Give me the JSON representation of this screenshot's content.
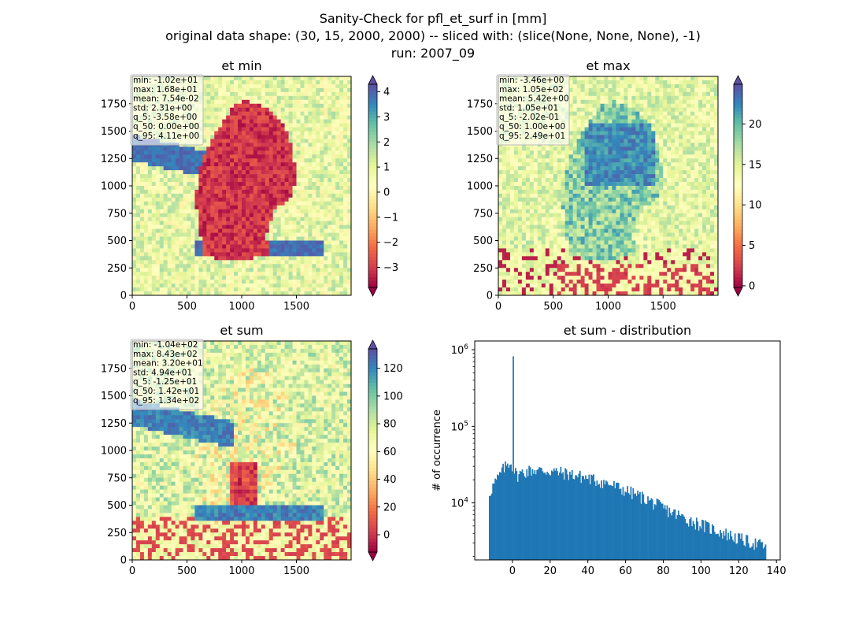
{
  "figure": {
    "title_lines": [
      "Sanity-Check for pfl_et_surf in [mm]",
      "original data shape: (30, 15, 2000, 2000) -- sliced with: (slice(None, None, None), -1)",
      "run: 2007_09"
    ]
  },
  "chart_data": [
    {
      "type": "heatmap",
      "title": "et min",
      "xlim": [
        0,
        2000
      ],
      "ylim": [
        0,
        2000
      ],
      "xticks": [
        0,
        500,
        1000,
        1500
      ],
      "yticks": [
        0,
        250,
        500,
        750,
        1000,
        1250,
        1500,
        1750
      ],
      "colormap": "Spectral",
      "colorbar": {
        "range": [
          -3.8,
          4.3
        ],
        "ticks": [
          -3,
          -2,
          -1,
          0,
          1,
          2,
          3,
          4
        ],
        "extend": "both"
      },
      "stats": [
        "min: -1.02e+01",
        "max: 1.68e+01",
        "mean: 7.54e-02",
        "std: 2.31e+00",
        "q_5: -3.58e+00",
        "q_50: 0.00e+00",
        "q_95: 4.11e+00"
      ]
    },
    {
      "type": "heatmap",
      "title": "et max",
      "xlim": [
        0,
        2000
      ],
      "ylim": [
        0,
        2000
      ],
      "xticks": [
        0,
        500,
        1000,
        1500
      ],
      "yticks": [
        0,
        250,
        500,
        750,
        1000,
        1250,
        1500,
        1750
      ],
      "colormap": "Spectral",
      "colorbar": {
        "range": [
          -0.2,
          24.9
        ],
        "ticks": [
          0,
          5,
          10,
          15,
          20
        ],
        "extend": "both"
      },
      "stats": [
        "min: -3.46e+00",
        "max: 1.05e+02",
        "mean: 5.42e+00",
        "std: 1.05e+01",
        "q_5: -2.02e-01",
        "q_50: 1.00e+00",
        "q_95: 2.49e+01"
      ]
    },
    {
      "type": "heatmap",
      "title": "et sum",
      "xlim": [
        0,
        2000
      ],
      "ylim": [
        0,
        2000
      ],
      "xticks": [
        0,
        500,
        1000,
        1500
      ],
      "yticks": [
        0,
        250,
        500,
        750,
        1000,
        1250,
        1500,
        1750
      ],
      "colormap": "Spectral",
      "colorbar": {
        "range": [
          -12.5,
          134
        ],
        "ticks": [
          0,
          20,
          40,
          60,
          80,
          100,
          120
        ],
        "extend": "both"
      },
      "stats": [
        "min: -1.04e+02",
        "max: 8.43e+02",
        "mean: 3.20e+01",
        "std: 4.94e+01",
        "q_5: -1.25e+01",
        "q_50: 1.42e+01",
        "q_95: 1.34e+02"
      ]
    },
    {
      "type": "bar",
      "title": "et sum - distribution",
      "ylabel": "# of occurrence",
      "xlabel": "",
      "yscale": "log",
      "xlim": [
        -20,
        142
      ],
      "ylim": [
        1800,
        1300000
      ],
      "xticks": [
        0,
        20,
        40,
        60,
        80,
        100,
        120,
        140
      ],
      "yticks": [
        10000,
        100000,
        1000000
      ],
      "ytick_labels": [
        [
          "10",
          "4"
        ],
        [
          "10",
          "5"
        ],
        [
          "10",
          "6"
        ]
      ],
      "color": "#1f77b4",
      "bins": {
        "start": -12.5,
        "end": 134,
        "width": 0.6
      },
      "peak": {
        "x": 0,
        "y": 820000
      },
      "envelope": [
        [
          -12.5,
          13500
        ],
        [
          -10,
          18000
        ],
        [
          -8,
          21000
        ],
        [
          -6,
          26000
        ],
        [
          -4,
          30000
        ],
        [
          -2,
          34000
        ],
        [
          -1,
          33000
        ],
        [
          0.5,
          27000
        ],
        [
          2,
          23000
        ],
        [
          5,
          25000
        ],
        [
          10,
          27000
        ],
        [
          20,
          26000
        ],
        [
          30,
          24000
        ],
        [
          40,
          21000
        ],
        [
          50,
          18000
        ],
        [
          60,
          14500
        ],
        [
          70,
          11500
        ],
        [
          80,
          8500
        ],
        [
          90,
          6500
        ],
        [
          100,
          5200
        ],
        [
          110,
          4200
        ],
        [
          120,
          3400
        ],
        [
          130,
          2900
        ],
        [
          134,
          2700
        ]
      ]
    }
  ]
}
